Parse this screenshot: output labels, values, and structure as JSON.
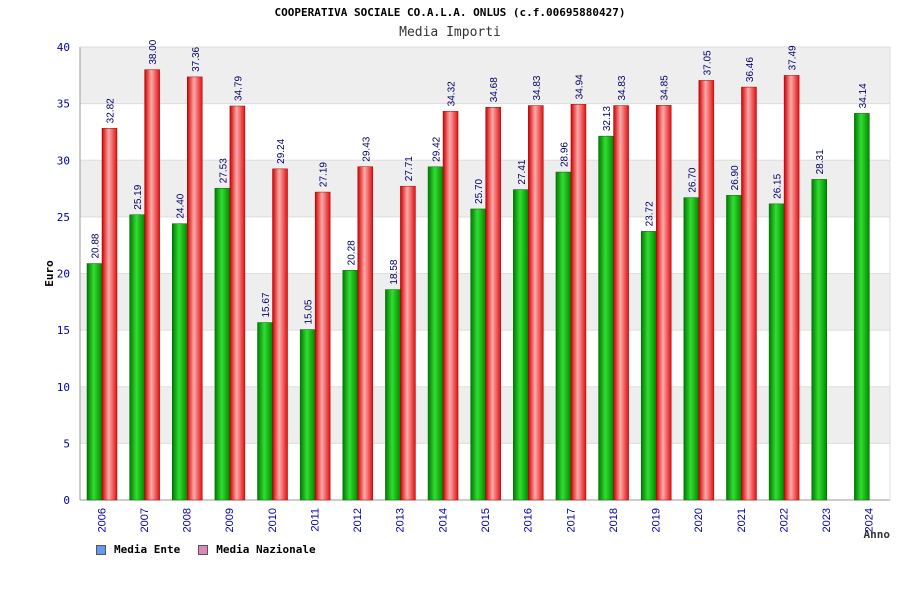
{
  "chart_data": {
    "type": "bar",
    "title": "COOPERATIVA SOCIALE CO.A.L.A. ONLUS (c.f.00695880427)",
    "subtitle": "Media Importi",
    "xlabel": "Anno",
    "ylabel": "Euro",
    "ylim": [
      0,
      40
    ],
    "yticks": [
      0,
      5,
      10,
      15,
      20,
      25,
      30,
      35,
      40
    ],
    "grid": true,
    "legend_position": "bottom-left",
    "categories": [
      "2006",
      "2007",
      "2008",
      "2009",
      "2010",
      "2011",
      "2012",
      "2013",
      "2014",
      "2015",
      "2016",
      "2017",
      "2018",
      "2019",
      "2020",
      "2021",
      "2022",
      "2023",
      "2024"
    ],
    "series": [
      {
        "name": "Media Ente",
        "color": "#00aa00",
        "legend_color": "#6699ee",
        "values": [
          20.88,
          25.19,
          24.4,
          27.53,
          15.67,
          15.05,
          20.28,
          18.58,
          29.42,
          25.7,
          27.41,
          28.96,
          32.13,
          23.72,
          26.7,
          26.9,
          26.15,
          28.31,
          34.14
        ],
        "labels": [
          "20.88",
          "25.19",
          "24.40",
          "27.53",
          "15.67",
          "15.05",
          "20.28",
          "18.58",
          "29.42",
          "25.70",
          "27.41",
          "28.96",
          "32.13",
          "23.72",
          "26.70",
          "26.90",
          "26.15",
          "28.31",
          "34.14"
        ]
      },
      {
        "name": "Media Nazionale",
        "color": "#ee2222",
        "legend_color": "#dd88bb",
        "values": [
          32.82,
          38.0,
          37.36,
          34.79,
          29.24,
          27.19,
          29.43,
          27.71,
          34.32,
          34.68,
          34.83,
          34.94,
          34.83,
          34.85,
          37.05,
          36.46,
          37.49,
          null,
          null
        ],
        "labels": [
          "32.82",
          "38.00",
          "37.36",
          "34.79",
          "29.24",
          "27.19",
          "29.43",
          "27.71",
          "34.32",
          "34.68",
          "34.83",
          "34.94",
          "34.83",
          "34.85",
          "37.05",
          "36.46",
          "37.49",
          null,
          null
        ]
      }
    ]
  }
}
